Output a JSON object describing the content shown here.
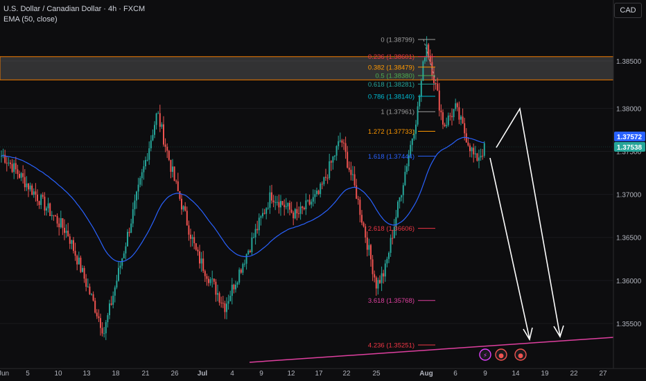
{
  "header": {
    "symbol_line": "U.S. Dollar / Canadian Dollar · 4h · FXCM",
    "indicator_line": "EMA (50, close)",
    "currency": "CAD"
  },
  "colors": {
    "background": "#0d0d0f",
    "up": "#26a69a",
    "down": "#ef5350",
    "ema": "#2962ff",
    "zone_border": "#f57c00",
    "trendline": "#e040a0",
    "arrows": "#ffffff",
    "price_tag_1": "#2962ff",
    "price_tag_2": "#26a69a"
  },
  "chart_data": {
    "type": "candlestick",
    "y_axis": {
      "position": "right",
      "ticks": [
        1.3855,
        1.38,
        1.375,
        1.37,
        1.365,
        1.36,
        1.355
      ],
      "tick_labels": [
        "1.38500",
        "1.38000",
        "1.37500",
        "1.37000",
        "1.36500",
        "1.36000",
        "1.35500"
      ],
      "range": [
        1.3497,
        1.388
      ]
    },
    "x_axis": {
      "tick_labels": [
        "Jun",
        "5",
        "10",
        "13",
        "18",
        "21",
        "26",
        "Jul",
        "4",
        "9",
        "12",
        "17",
        "22",
        "25",
        "Aug",
        "6",
        "9",
        "14",
        "19",
        "22",
        "27"
      ]
    },
    "price_tags": [
      {
        "label": "1.37572",
        "value": 1.37572
      },
      {
        "label": "1.37538",
        "value": 1.37538
      }
    ],
    "ema_series_name": "EMA (50, close)",
    "ohlc_approx_swing_points": [
      {
        "date": "Jun 1",
        "close": 1.3745
      },
      {
        "date": "Jun 11",
        "close": 1.3655
      },
      {
        "date": "Jun 16",
        "close": 1.354
      },
      {
        "date": "Jun 23",
        "close": 1.3795
      },
      {
        "date": "Jun 26",
        "close": 1.3715
      },
      {
        "date": "Jun 30",
        "close": 1.363
      },
      {
        "date": "Jul 4",
        "close": 1.357
      },
      {
        "date": "Jul 11",
        "close": 1.37
      },
      {
        "date": "Jul 14",
        "close": 1.3675
      },
      {
        "date": "Jul 18",
        "close": 1.37
      },
      {
        "date": "Jul 22",
        "close": 1.3765
      },
      {
        "date": "Jul 24",
        "close": 1.37
      },
      {
        "date": "Jul 26",
        "close": 1.3595
      },
      {
        "date": "Jul 27",
        "close": 1.361
      },
      {
        "date": "Jul 31",
        "close": 1.38
      },
      {
        "date": "Aug 1",
        "close": 1.3878
      },
      {
        "date": "Aug 4",
        "close": 1.378
      },
      {
        "date": "Aug 6",
        "close": 1.38
      },
      {
        "date": "Aug 8",
        "close": 1.374
      },
      {
        "date": "Aug 9",
        "close": 1.3754
      }
    ],
    "fib_levels": [
      {
        "label": "0 (1.38799)",
        "value": 1.38799,
        "color": "#9e9e9e"
      },
      {
        "label": "0.236 (1.38601)",
        "value": 1.38601,
        "color": "#f23645"
      },
      {
        "label": "0.382 (1.38479)",
        "value": 1.38479,
        "color": "#ff9800"
      },
      {
        "label": "0.5 (1.38380)",
        "value": 1.3838,
        "color": "#4caf50"
      },
      {
        "label": "0.618 (1.38281)",
        "value": 1.38281,
        "color": "#26a69a"
      },
      {
        "label": "0.786 (1.38140)",
        "value": 1.3814,
        "color": "#00bcd4"
      },
      {
        "label": "1 (1.37961)",
        "value": 1.37961,
        "color": "#9e9e9e"
      },
      {
        "label": "1.272 (1.37733)",
        "value": 1.37733,
        "color": "#ff9800"
      },
      {
        "label": "1.618 (1.37444)",
        "value": 1.37444,
        "color": "#2962ff"
      },
      {
        "label": "2.618 (1.36606)",
        "value": 1.36606,
        "color": "#f23645"
      },
      {
        "label": "3.618 (1.35768)",
        "value": 1.35768,
        "color": "#e040a0"
      },
      {
        "label": "4.236 (1.35251)",
        "value": 1.35251,
        "color": "#f23645"
      }
    ],
    "resistance_zone": [
      1.3833,
      1.386
    ]
  }
}
